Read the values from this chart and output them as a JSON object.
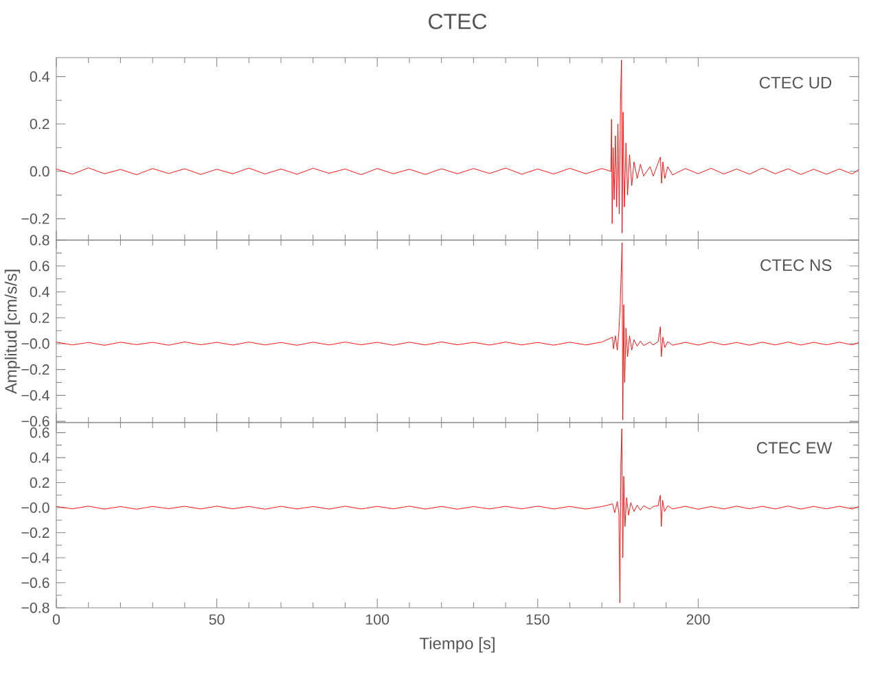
{
  "chart_data": [
    {
      "type": "line",
      "title": "CTEC",
      "annotations": [
        "CTEC   UD"
      ],
      "xlim": [
        0,
        250
      ],
      "ylim": [
        -0.29,
        0.48
      ],
      "tick_labels": "y",
      "xticks": [
        0,
        50,
        100,
        150,
        200
      ],
      "yticks": [
        {
          "value": -0.2,
          "label": "−0.2"
        },
        {
          "value": 0,
          "label": "0.0"
        },
        {
          "value": 0.2,
          "label": "0.2"
        },
        {
          "value": 0.4,
          "label": "0.4"
        }
      ],
      "x": [
        0,
        5,
        10,
        15,
        20,
        25,
        30,
        35,
        40,
        45,
        50,
        55,
        60,
        65,
        70,
        75,
        80,
        85,
        90,
        95,
        100,
        105,
        110,
        115,
        120,
        125,
        130,
        135,
        140,
        145,
        150,
        155,
        160,
        165,
        170,
        172.8,
        173.0,
        173.2,
        173.5,
        173.8,
        174.2,
        174.6,
        175.0,
        175.4,
        175.8,
        176.1,
        176.3,
        176.6,
        177.0,
        177.5,
        178.0,
        178.6,
        179.3,
        180,
        181,
        182,
        183,
        185,
        186,
        187.5,
        188.2,
        188.6,
        189,
        189.6,
        190.5,
        192,
        196,
        200,
        204,
        208,
        212,
        216,
        220,
        224,
        228,
        232,
        236,
        240,
        244,
        248,
        250
      ],
      "series": [
        {
          "color": "#ff0000",
          "values": [
            0.01,
            -0.012,
            0.015,
            -0.01,
            0.008,
            -0.014,
            0.012,
            -0.009,
            0.011,
            -0.013,
            0.009,
            -0.01,
            0.014,
            -0.011,
            0.01,
            -0.012,
            0.013,
            -0.008,
            0.01,
            -0.014,
            0.012,
            -0.01,
            0.009,
            -0.013,
            0.011,
            -0.01,
            0.012,
            -0.009,
            0.014,
            -0.012,
            0.01,
            -0.011,
            0.013,
            -0.01,
            0.012,
            0.0,
            0.22,
            -0.22,
            0.1,
            -0.12,
            0.15,
            -0.15,
            0.2,
            -0.18,
            0.3,
            0.47,
            -0.26,
            0.25,
            -0.15,
            0.12,
            -0.1,
            0.07,
            -0.06,
            0.04,
            -0.03,
            0.03,
            -0.02,
            0.02,
            -0.02,
            0.035,
            0.06,
            -0.05,
            0.04,
            -0.03,
            0.02,
            -0.015,
            0.012,
            -0.01,
            0.013,
            -0.011,
            0.01,
            -0.012,
            0.014,
            -0.01,
            0.011,
            -0.013,
            0.009,
            -0.012,
            0.01,
            -0.011,
            0.008
          ]
        }
      ]
    },
    {
      "type": "line",
      "ylabel": "Amplitud  [cm/s/s]",
      "annotations": [
        "CTEC   NS"
      ],
      "xlim": [
        0,
        250
      ],
      "ylim": [
        -0.61,
        0.8
      ],
      "tick_labels": "y",
      "xticks": [
        0,
        50,
        100,
        150,
        200
      ],
      "yticks": [
        {
          "value": -0.6,
          "label": "−0.6"
        },
        {
          "value": -0.4,
          "label": "−0.4"
        },
        {
          "value": -0.2,
          "label": "−0.2"
        },
        {
          "value": 0,
          "label": "−0.0"
        },
        {
          "value": 0.2,
          "label": "0.2"
        },
        {
          "value": 0.4,
          "label": "0.4"
        },
        {
          "value": 0.6,
          "label": "0.6"
        },
        {
          "value": 0.8,
          "label": "0.8"
        }
      ],
      "x": [
        0,
        5,
        10,
        15,
        20,
        25,
        30,
        35,
        40,
        45,
        50,
        55,
        60,
        65,
        70,
        75,
        80,
        85,
        90,
        95,
        100,
        105,
        110,
        115,
        120,
        125,
        130,
        135,
        140,
        145,
        150,
        155,
        160,
        165,
        170,
        173.3,
        173.6,
        174.2,
        174.8,
        175.3,
        175.7,
        176.0,
        176.3,
        176.5,
        176.8,
        177.1,
        177.5,
        178.0,
        178.6,
        179.3,
        180,
        181,
        182,
        183,
        185,
        186,
        187.5,
        188.2,
        188.5,
        189,
        189.6,
        190.5,
        192,
        196,
        200,
        204,
        208,
        212,
        216,
        220,
        224,
        228,
        232,
        236,
        240,
        244,
        248,
        250
      ],
      "series": [
        {
          "color": "#ff0000",
          "values": [
            0.012,
            -0.01,
            0.009,
            -0.013,
            0.011,
            -0.008,
            0.01,
            -0.012,
            0.013,
            -0.009,
            0.01,
            -0.011,
            0.012,
            -0.01,
            0.009,
            -0.013,
            0.011,
            -0.01,
            0.012,
            -0.009,
            0.01,
            -0.012,
            0.011,
            -0.01,
            0.013,
            -0.009,
            0.01,
            -0.011,
            0.012,
            -0.01,
            0.009,
            -0.012,
            0.011,
            -0.01,
            0.012,
            0.05,
            -0.04,
            0.06,
            -0.05,
            0.1,
            0.3,
            0.55,
            0.78,
            -0.59,
            0.3,
            -0.3,
            0.12,
            -0.1,
            0.06,
            -0.05,
            0.03,
            -0.02,
            0.02,
            -0.015,
            0.012,
            -0.01,
            0.015,
            0.13,
            -0.1,
            0.05,
            -0.03,
            0.015,
            -0.012,
            0.01,
            -0.011,
            0.013,
            -0.01,
            0.009,
            -0.012,
            0.011,
            -0.01,
            0.012,
            -0.011,
            0.01,
            -0.009,
            0.011,
            -0.01,
            0.009
          ]
        }
      ]
    },
    {
      "type": "line",
      "xlabel": "Tiempo  [s]",
      "annotations": [
        "CTEC   EW"
      ],
      "xlim": [
        0,
        250
      ],
      "ylim": [
        -0.8,
        0.68
      ],
      "xticks": [
        0,
        50,
        100,
        150,
        200
      ],
      "yticks": [
        {
          "value": -0.8,
          "label": "−0.8"
        },
        {
          "value": -0.6,
          "label": "−0.6"
        },
        {
          "value": -0.4,
          "label": "−0.4"
        },
        {
          "value": -0.2,
          "label": "−0.2"
        },
        {
          "value": 0,
          "label": "−0.0"
        },
        {
          "value": 0.2,
          "label": "0.2"
        },
        {
          "value": 0.4,
          "label": "0.4"
        },
        {
          "value": 0.6,
          "label": "0.6"
        }
      ],
      "x": [
        0,
        5,
        10,
        15,
        20,
        25,
        30,
        35,
        40,
        45,
        50,
        55,
        60,
        65,
        70,
        75,
        80,
        85,
        90,
        95,
        100,
        105,
        110,
        115,
        120,
        125,
        130,
        135,
        140,
        145,
        150,
        155,
        160,
        165,
        170,
        173.3,
        174.0,
        174.8,
        175.3,
        175.6,
        175.9,
        176.2,
        176.5,
        176.8,
        177.2,
        177.7,
        178.3,
        179,
        180,
        181,
        182,
        183,
        185,
        186,
        187.5,
        188.2,
        188.5,
        188.9,
        189.5,
        190.5,
        192,
        196,
        200,
        204,
        208,
        212,
        216,
        220,
        224,
        228,
        232,
        236,
        240,
        244,
        248,
        250
      ],
      "series": [
        {
          "color": "#ff0000",
          "values": [
            0.01,
            -0.009,
            0.012,
            -0.011,
            0.009,
            -0.012,
            0.01,
            -0.008,
            0.011,
            -0.01,
            0.012,
            -0.009,
            0.01,
            -0.012,
            0.011,
            -0.01,
            0.009,
            -0.011,
            0.012,
            -0.01,
            0.01,
            -0.009,
            0.012,
            -0.011,
            0.01,
            -0.012,
            0.009,
            -0.01,
            0.011,
            -0.009,
            0.012,
            -0.01,
            0.01,
            -0.011,
            0.009,
            0.03,
            -0.04,
            0.05,
            -0.05,
            -0.76,
            0.35,
            0.63,
            -0.4,
            0.25,
            -0.15,
            0.08,
            -0.06,
            0.04,
            -0.03,
            0.02,
            -0.02,
            0.015,
            -0.012,
            0.01,
            0.015,
            0.1,
            -0.15,
            0.06,
            -0.03,
            0.015,
            -0.01,
            0.011,
            -0.012,
            0.009,
            -0.01,
            0.012,
            -0.009,
            0.011,
            -0.01,
            0.013,
            -0.011,
            0.01,
            -0.009,
            0.011,
            -0.01,
            0.009
          ]
        }
      ]
    }
  ]
}
